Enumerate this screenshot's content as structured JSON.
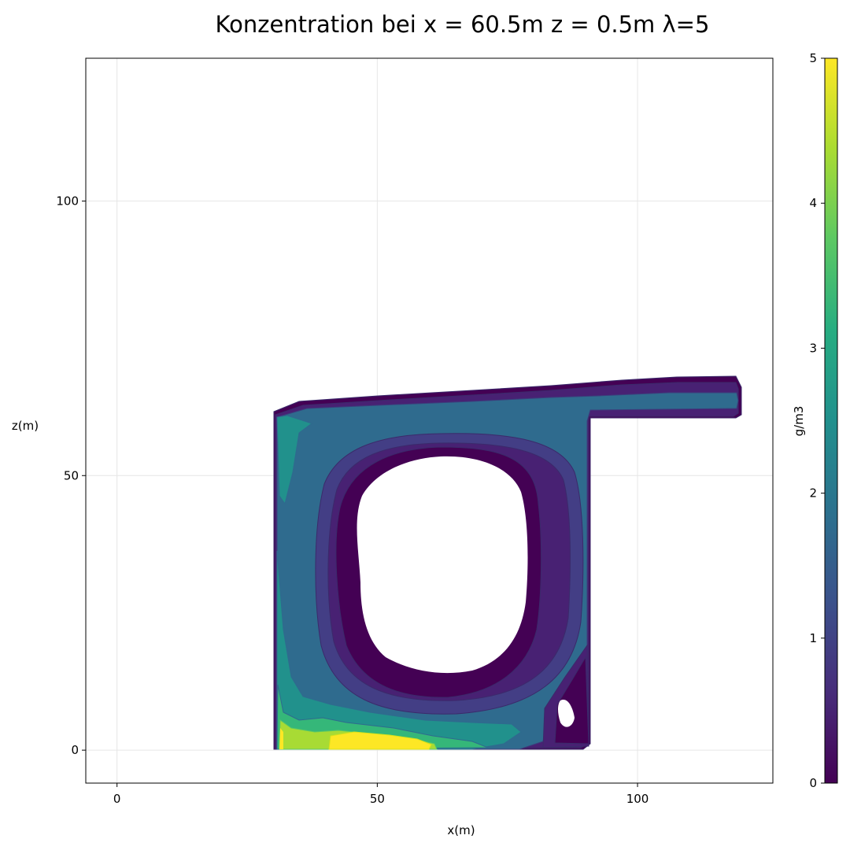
{
  "chart_data": {
    "type": "contour",
    "title": "Konzentration bei x = 60.5m z = 0.5m λ=5",
    "xlabel": "x(m)",
    "ylabel": "z(m)",
    "xlim": [
      -6,
      126
    ],
    "ylim": [
      -6,
      126
    ],
    "xticks": [
      0,
      50,
      100
    ],
    "yticks": [
      0,
      50,
      100
    ],
    "grid": true,
    "colormap": "viridis",
    "colorbar": {
      "label": "g/m3",
      "range": [
        0,
        5
      ],
      "ticks": [
        0,
        1,
        2,
        3,
        4,
        5
      ],
      "stops": [
        "#440154",
        "#472c7a",
        "#3b518b",
        "#2c718e",
        "#21908d",
        "#27ad81",
        "#5cc863",
        "#aadc32",
        "#fde725"
      ]
    },
    "levels": [
      {
        "value": 0.25,
        "color": "#440154"
      },
      {
        "value": 0.75,
        "color": "#482173"
      },
      {
        "value": 1.25,
        "color": "#433e85"
      },
      {
        "value": 1.75,
        "color": "#31688e"
      },
      {
        "value": 2.5,
        "color": "#21918c"
      },
      {
        "value": 3.25,
        "color": "#35b779"
      },
      {
        "value": 4.25,
        "color": "#a8db34"
      },
      {
        "value": 5.0,
        "color": "#fde725"
      }
    ]
  }
}
